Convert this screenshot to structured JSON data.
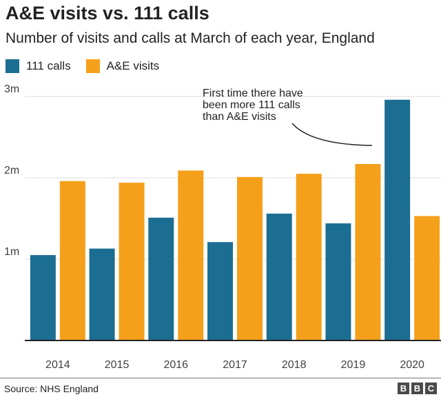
{
  "title": "A&E visits vs. 111 calls",
  "subtitle": "Number of visits and calls at March of each year, England",
  "legend": [
    {
      "label": "111 calls",
      "color": "#1b6e92"
    },
    {
      "label": "A&E visits",
      "color": "#f5a01a"
    }
  ],
  "annotation": [
    "First time there have",
    "been more 111 calls",
    "than A&E visits"
  ],
  "source": "Source: NHS England",
  "logo": [
    "B",
    "B",
    "C"
  ],
  "chart_data": {
    "type": "bar",
    "categories": [
      "2014",
      "2015",
      "2016",
      "2017",
      "2018",
      "2019",
      "2020"
    ],
    "series": [
      {
        "name": "111 calls",
        "color": "#1b6e92",
        "values": [
          1.05,
          1.13,
          1.51,
          1.21,
          1.56,
          1.44,
          2.96
        ]
      },
      {
        "name": "A&E visits",
        "color": "#f5a01a",
        "values": [
          1.96,
          1.94,
          2.09,
          2.01,
          2.05,
          2.17,
          1.53
        ]
      }
    ],
    "ylim": [
      0,
      3
    ],
    "yticks": [
      1,
      2,
      3
    ],
    "ytick_labels": [
      "1m",
      "2m",
      "3m"
    ],
    "grid": true,
    "legend_position": "top-left"
  }
}
